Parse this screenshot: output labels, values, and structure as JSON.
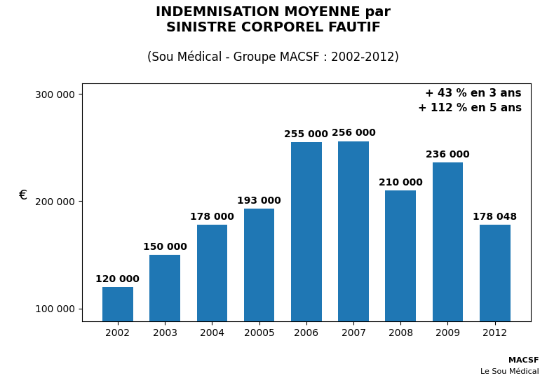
{
  "chart_data": {
    "type": "bar",
    "title": "INDEMNISATION MOYENNE par\nSINISTRE CORPOREL FAUTIF",
    "subtitle": "(Sou Médical - Groupe MACSF : 2002-2012)",
    "y_label": "€",
    "categories": [
      "2002",
      "2003",
      "2004",
      "20005",
      "2006",
      "2007",
      "2008",
      "2009",
      "2012"
    ],
    "values": [
      120000,
      150000,
      178000,
      193000,
      255000,
      256000,
      210000,
      236000,
      178048
    ],
    "value_labels": [
      "120 000",
      "150 000",
      "178 000",
      "193 000",
      "255 000",
      "256 000",
      "210 000",
      "236 000",
      "178 048"
    ],
    "data_labels": true,
    "ylim": [
      88000,
      310000
    ],
    "yticks": [
      {
        "value": 100000,
        "label": "100 000"
      },
      {
        "value": 200000,
        "label": "200 000"
      },
      {
        "value": 300000,
        "label": "300 000"
      }
    ],
    "grid": false,
    "annotations": [
      "+ 43 % en 3 ans\n+ 112 % en 5 ans",
      "MACSF",
      "Le Sou Médical"
    ]
  }
}
